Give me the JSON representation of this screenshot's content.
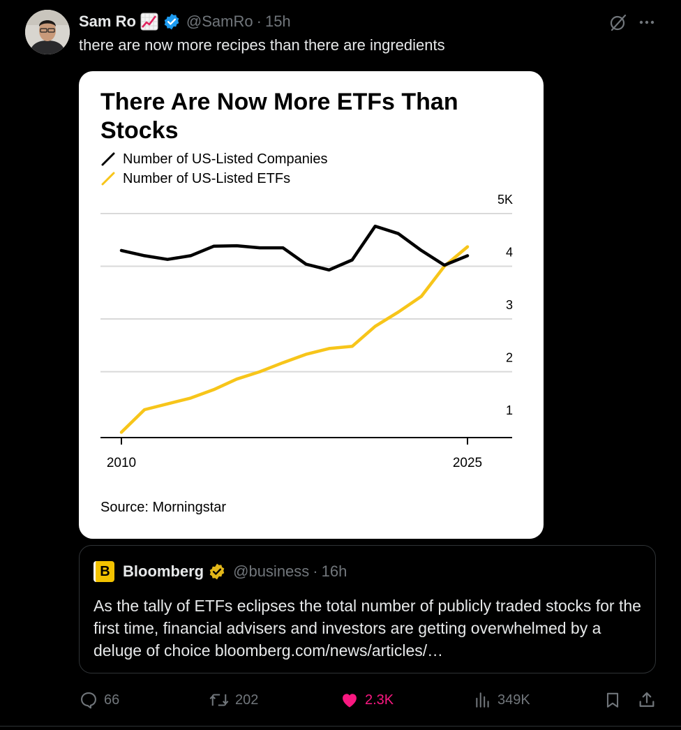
{
  "tweet": {
    "author_name": "Sam Ro",
    "author_emoji": "chart-increasing-emoji",
    "handle": "@SamRo",
    "separator": "·",
    "time": "15h",
    "text": "there are now more recipes than there are ingredients"
  },
  "chart_card": {
    "source": "Source: Morningstar"
  },
  "chart_data": {
    "type": "line",
    "title": "There Are Now More ETFs Than Stocks",
    "xlabel": "",
    "ylabel": "",
    "x_tick_labels": [
      "2010",
      "2025"
    ],
    "y_tick_labels": [
      "1",
      "2",
      "3",
      "4",
      "5K"
    ],
    "ylim": [
      0.75,
      5
    ],
    "xlim": [
      2010,
      2025
    ],
    "grid": true,
    "legend_position": "top-left",
    "series": [
      {
        "name": "Number of US-Listed Companies",
        "color": "#000000",
        "x": [
          2010,
          2011,
          2012,
          2013,
          2014,
          2015,
          2016,
          2017,
          2018,
          2019,
          2020,
          2021,
          2022,
          2023,
          2024,
          2025
        ],
        "values": [
          4.3,
          4.2,
          4.13,
          4.2,
          4.38,
          4.39,
          4.35,
          4.35,
          4.04,
          3.93,
          4.12,
          4.76,
          4.62,
          4.3,
          4.02,
          4.2
        ]
      },
      {
        "name": "Number of US-Listed ETFs",
        "color": "#f7c51a",
        "x": [
          2010,
          2011,
          2012,
          2013,
          2014,
          2015,
          2016,
          2017,
          2018,
          2019,
          2020,
          2021,
          2022,
          2023,
          2024,
          2025
        ],
        "values": [
          0.85,
          1.28,
          1.39,
          1.5,
          1.66,
          1.86,
          2.0,
          2.17,
          2.33,
          2.44,
          2.48,
          2.86,
          3.13,
          3.43,
          4.0,
          4.37
        ]
      }
    ]
  },
  "quote": {
    "logo_letter": "B",
    "name": "Bloomberg",
    "handle": "@business",
    "separator": "·",
    "time": "16h",
    "text": "As the tally of ETFs eclipses the total number of publicly traded stocks for the first time, financial advisers and investors are getting overwhelmed by a deluge of choice bloomberg.com/news/articles/…"
  },
  "stats": {
    "replies": "66",
    "reposts": "202",
    "likes": "2.3K",
    "views": "349K"
  },
  "colors": {
    "background": "#000000",
    "text": "#e7e9ea",
    "muted": "#71767b",
    "like": "#f91880",
    "verified_blue": "#1d9bf0",
    "verified_gold": "#e2b719",
    "etf_yellow": "#f7c51a"
  }
}
